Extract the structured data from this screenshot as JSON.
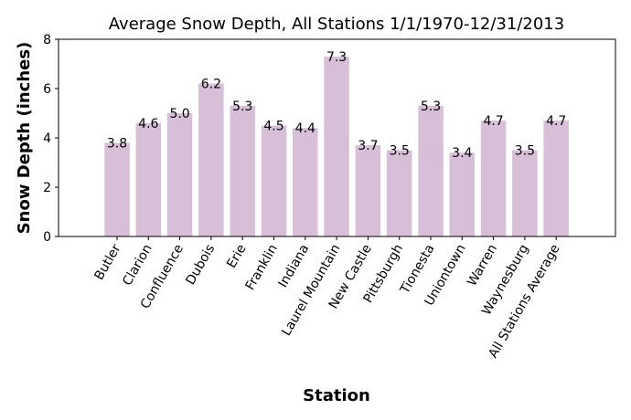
{
  "chart_data": {
    "type": "bar",
    "title": "Average Snow Depth, All Stations 1/1/1970-12/31/2013",
    "xlabel": "Station",
    "ylabel": "Snow Depth (inches)",
    "ylim": [
      0,
      8
    ],
    "yticks": [
      0,
      2,
      4,
      6,
      8
    ],
    "grid": false,
    "bar_color": "#d8bfd8",
    "categories": [
      "Butler",
      "Clarion",
      "Confluence",
      "Dubois",
      "Erie",
      "Franklin",
      "Indiana",
      "Laurel Mountain",
      "New Castle",
      "Pittsburgh",
      "Tionesta",
      "Uniontown",
      "Warren",
      "Waynesburg",
      "All Stations Average"
    ],
    "values": [
      3.8,
      4.6,
      5.0,
      6.2,
      5.3,
      4.5,
      4.4,
      7.3,
      3.7,
      3.5,
      5.3,
      3.4,
      4.7,
      3.5,
      4.7
    ],
    "data_labels": [
      "3.8",
      "4.6",
      "5.0",
      "6.2",
      "5.3",
      "4.5",
      "4.4",
      "7.3",
      "3.7",
      "3.5",
      "5.3",
      "3.4",
      "4.7",
      "3.5",
      "4.7"
    ]
  }
}
